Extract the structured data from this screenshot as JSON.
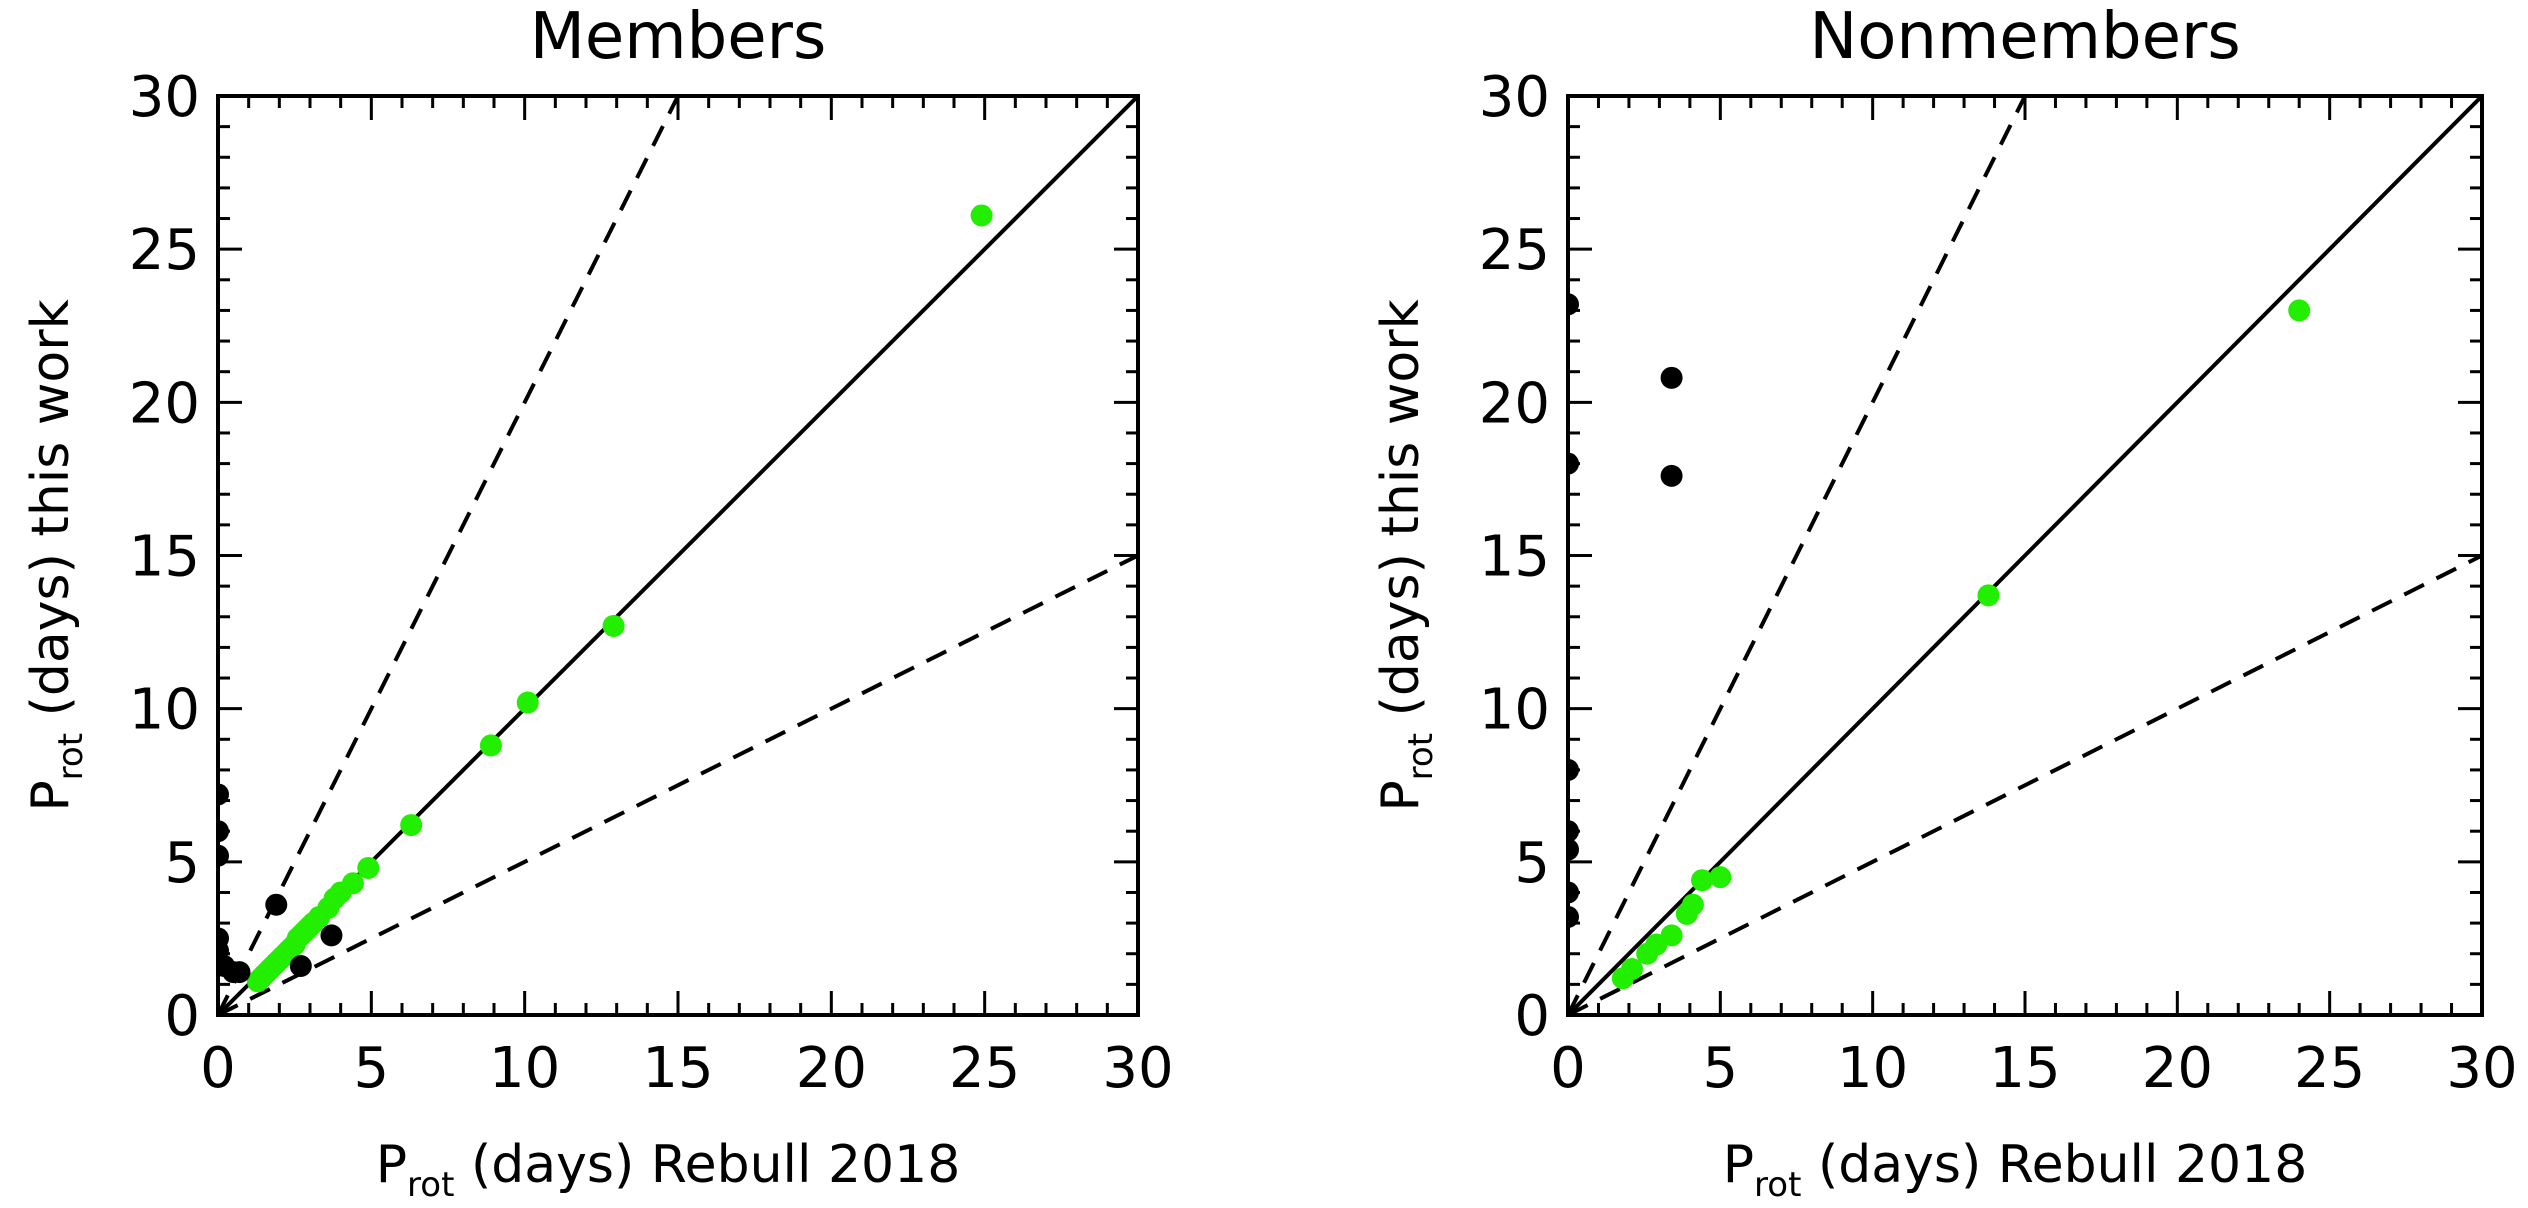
{
  "chart_data": [
    {
      "type": "scatter",
      "title": "Members",
      "xlabel": {
        "main": "P",
        "sub": "rot",
        "rest": " (days) Rebull 2018"
      },
      "ylabel": {
        "main": "P",
        "sub": "rot",
        "rest": " (days) this work"
      },
      "xlim": [
        0,
        30
      ],
      "ylim": [
        0,
        30
      ],
      "xticks": [
        0,
        5,
        10,
        15,
        20,
        25,
        30
      ],
      "yticks": [
        0,
        5,
        10,
        15,
        20,
        25,
        30
      ],
      "reference_lines": [
        {
          "slope": 1,
          "style": "solid"
        },
        {
          "slope": 2,
          "style": "dashed"
        },
        {
          "slope": 0.5,
          "style": "dashed"
        }
      ],
      "series": [
        {
          "color": "#22ee00",
          "points": [
            [
              1.3,
              1.1
            ],
            [
              1.4,
              1.2
            ],
            [
              1.5,
              1.3
            ],
            [
              1.6,
              1.4
            ],
            [
              1.7,
              1.5
            ],
            [
              1.8,
              1.6
            ],
            [
              1.9,
              1.7
            ],
            [
              2.0,
              1.8
            ],
            [
              2.1,
              1.9
            ],
            [
              2.2,
              2.0
            ],
            [
              2.3,
              2.1
            ],
            [
              2.4,
              2.2
            ],
            [
              2.5,
              2.3
            ],
            [
              2.6,
              2.5
            ],
            [
              2.7,
              2.6
            ],
            [
              2.8,
              2.7
            ],
            [
              2.9,
              2.8
            ],
            [
              3.0,
              2.9
            ],
            [
              3.1,
              3.0
            ],
            [
              3.3,
              3.2
            ],
            [
              3.6,
              3.5
            ],
            [
              3.8,
              3.8
            ],
            [
              4.0,
              4.0
            ],
            [
              4.4,
              4.3
            ],
            [
              4.9,
              4.8
            ],
            [
              6.3,
              6.2
            ],
            [
              8.9,
              8.8
            ],
            [
              10.1,
              10.2
            ],
            [
              12.9,
              12.7
            ],
            [
              24.9,
              26.1
            ]
          ]
        },
        {
          "color": "#000000",
          "points": [
            [
              0.0,
              7.2
            ],
            [
              0.0,
              6.0
            ],
            [
              0.0,
              5.2
            ],
            [
              0.0,
              2.5
            ],
            [
              0.0,
              2.1
            ],
            [
              0.2,
              1.6
            ],
            [
              0.5,
              1.4
            ],
            [
              0.7,
              1.4
            ],
            [
              1.9,
              3.6
            ],
            [
              2.7,
              1.6
            ],
            [
              3.7,
              2.6
            ]
          ]
        }
      ]
    },
    {
      "type": "scatter",
      "title": "Nonmembers",
      "xlabel": {
        "main": "P",
        "sub": "rot",
        "rest": " (days) Rebull 2018"
      },
      "ylabel": {
        "main": "P",
        "sub": "rot",
        "rest": " (days) this work"
      },
      "xlim": [
        0,
        30
      ],
      "ylim": [
        0,
        30
      ],
      "xticks": [
        0,
        5,
        10,
        15,
        20,
        25,
        30
      ],
      "yticks": [
        0,
        5,
        10,
        15,
        20,
        25,
        30
      ],
      "reference_lines": [
        {
          "slope": 1,
          "style": "solid"
        },
        {
          "slope": 2,
          "style": "dashed"
        },
        {
          "slope": 0.5,
          "style": "dashed"
        }
      ],
      "series": [
        {
          "color": "#22ee00",
          "points": [
            [
              1.8,
              1.2
            ],
            [
              2.1,
              1.5
            ],
            [
              2.6,
              2.0
            ],
            [
              2.9,
              2.3
            ],
            [
              3.4,
              2.6
            ],
            [
              3.9,
              3.3
            ],
            [
              4.1,
              3.6
            ],
            [
              4.4,
              4.4
            ],
            [
              5.0,
              4.5
            ],
            [
              13.8,
              13.7
            ],
            [
              24.0,
              23.0
            ]
          ]
        },
        {
          "color": "#000000",
          "points": [
            [
              0.0,
              23.2
            ],
            [
              0.0,
              18.0
            ],
            [
              0.0,
              8.0
            ],
            [
              0.0,
              6.0
            ],
            [
              0.0,
              5.4
            ],
            [
              0.0,
              4.0
            ],
            [
              0.0,
              3.2
            ],
            [
              3.4,
              20.8
            ],
            [
              3.4,
              17.6
            ]
          ]
        }
      ]
    }
  ]
}
